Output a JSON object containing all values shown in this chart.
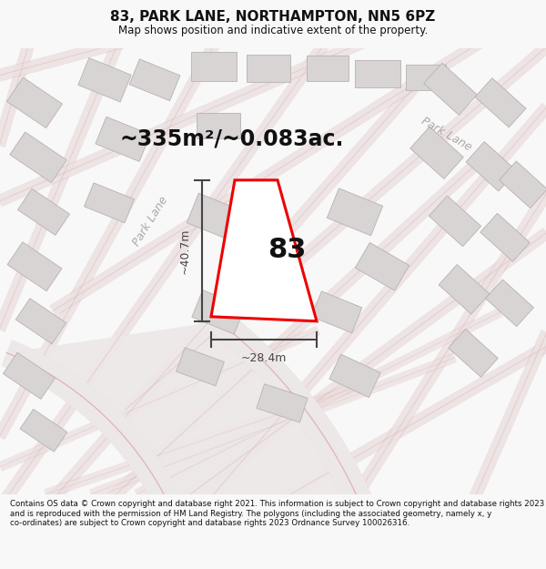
{
  "title": "83, PARK LANE, NORTHAMPTON, NN5 6PZ",
  "subtitle": "Map shows position and indicative extent of the property.",
  "area_text": "~335m²/~0.083ac.",
  "label_83": "83",
  "dim_width": "~28.4m",
  "dim_height": "~40.7m",
  "road_label_left": "Park Lane",
  "road_label_right": "Park Lane",
  "footer": "Contains OS data © Crown copyright and database right 2021. This information is subject to Crown copyright and database rights 2023 and is reproduced with the permission of HM Land Registry. The polygons (including the associated geometry, namely x, y co-ordinates) are subject to Crown copyright and database rights 2023 Ordnance Survey 100026316.",
  "bg_color": "#f8f8f8",
  "map_bg": "#f2f0f0",
  "road_fill": "#ede8e8",
  "road_edge": "#e0b8b8",
  "building_fill": "#d8d4d4",
  "building_edge": "#b8b2b2",
  "highlight_color": "#ee0000",
  "dim_color": "#444444",
  "text_color": "#111111",
  "road_text_color": "#b0a8a8",
  "title_fontsize": 11,
  "subtitle_fontsize": 8.5,
  "area_fontsize": 17,
  "label_fontsize": 22,
  "dim_fontsize": 9,
  "road_label_fontsize": 9,
  "footer_fontsize": 6.2
}
